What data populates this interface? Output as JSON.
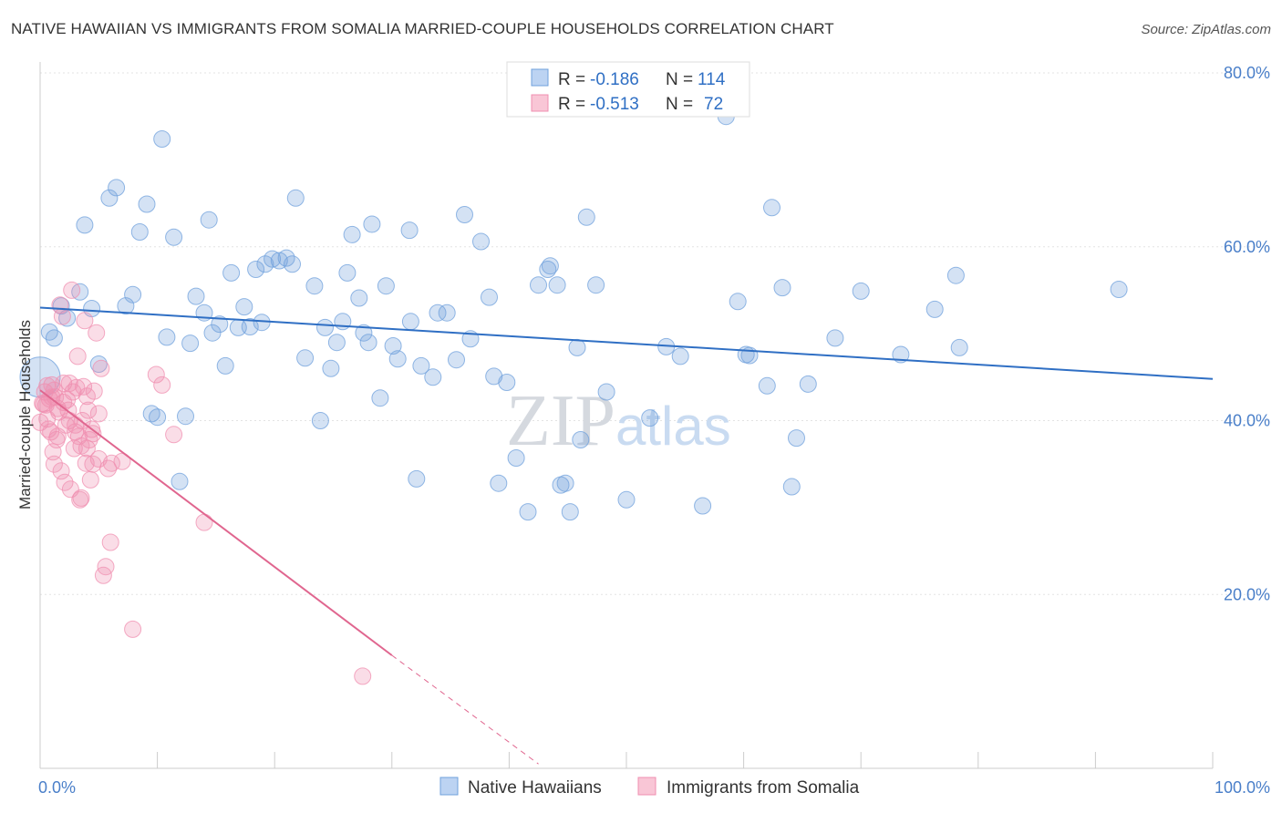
{
  "header": {
    "title": "NATIVE HAWAIIAN VS IMMIGRANTS FROM SOMALIA MARRIED-COUPLE HOUSEHOLDS CORRELATION CHART",
    "source": "Source: ZipAtlas.com"
  },
  "watermark": "ZIPatlas",
  "chart_data": {
    "type": "scatter",
    "ylabel": "Married-couple Households",
    "xlim": [
      0,
      100
    ],
    "ylim": [
      0,
      80
    ],
    "x_ticks": [
      {
        "value": 0,
        "label": "0.0%"
      },
      {
        "value": 100,
        "label": "100.0%"
      }
    ],
    "y_ticks": [
      {
        "value": 20,
        "label": "20.0%"
      },
      {
        "value": 40,
        "label": "40.0%"
      },
      {
        "value": 60,
        "label": "60.0%"
      },
      {
        "value": 80,
        "label": "80.0%"
      }
    ],
    "grid": true,
    "legend_position": "top-center",
    "series": [
      {
        "name": "Native Hawaiians",
        "color": "#6fa0dc",
        "line_color": "#2f6fc4",
        "r_label": "R =",
        "r_value": "-0.186",
        "n_label": "N =",
        "n_value": "114",
        "trend": {
          "x0": 0,
          "y0": 53.0,
          "x1": 100,
          "y1": 44.8
        },
        "points": [
          [
            0.0,
            45.0
          ],
          [
            0.8,
            50.2
          ],
          [
            1.2,
            49.5
          ],
          [
            1.8,
            53.2
          ],
          [
            2.3,
            51.8
          ],
          [
            3.4,
            54.8
          ],
          [
            4.4,
            52.9
          ],
          [
            5.0,
            46.5
          ],
          [
            3.8,
            62.5
          ],
          [
            5.9,
            65.6
          ],
          [
            6.5,
            66.8
          ],
          [
            7.3,
            53.2
          ],
          [
            7.9,
            54.5
          ],
          [
            8.5,
            61.7
          ],
          [
            9.1,
            64.9
          ],
          [
            9.5,
            40.8
          ],
          [
            10.0,
            40.4
          ],
          [
            10.4,
            72.4
          ],
          [
            10.8,
            49.6
          ],
          [
            11.4,
            61.1
          ],
          [
            11.9,
            33.0
          ],
          [
            12.4,
            40.5
          ],
          [
            12.8,
            48.9
          ],
          [
            13.3,
            54.3
          ],
          [
            14.0,
            52.4
          ],
          [
            14.4,
            63.1
          ],
          [
            14.7,
            50.1
          ],
          [
            15.3,
            51.1
          ],
          [
            15.8,
            46.3
          ],
          [
            16.3,
            57.0
          ],
          [
            16.9,
            50.7
          ],
          [
            17.4,
            53.1
          ],
          [
            17.9,
            50.8
          ],
          [
            18.4,
            57.4
          ],
          [
            18.9,
            51.3
          ],
          [
            19.2,
            58.0
          ],
          [
            19.8,
            58.6
          ],
          [
            20.4,
            58.4
          ],
          [
            21.0,
            58.7
          ],
          [
            21.5,
            58.0
          ],
          [
            21.8,
            65.6
          ],
          [
            22.6,
            47.2
          ],
          [
            23.4,
            55.5
          ],
          [
            23.9,
            40.0
          ],
          [
            24.3,
            50.7
          ],
          [
            24.8,
            46.0
          ],
          [
            25.3,
            49.0
          ],
          [
            25.8,
            51.4
          ],
          [
            26.2,
            57.0
          ],
          [
            26.6,
            61.4
          ],
          [
            27.2,
            54.1
          ],
          [
            27.6,
            50.1
          ],
          [
            28.0,
            49.0
          ],
          [
            28.3,
            62.6
          ],
          [
            29.0,
            42.6
          ],
          [
            29.5,
            55.5
          ],
          [
            30.1,
            48.6
          ],
          [
            30.5,
            47.1
          ],
          [
            31.5,
            61.9
          ],
          [
            31.6,
            51.4
          ],
          [
            32.1,
            33.3
          ],
          [
            32.5,
            46.3
          ],
          [
            33.5,
            45.0
          ],
          [
            33.9,
            52.4
          ],
          [
            34.7,
            52.4
          ],
          [
            35.5,
            47.0
          ],
          [
            36.2,
            63.7
          ],
          [
            36.7,
            49.4
          ],
          [
            37.6,
            60.6
          ],
          [
            38.3,
            54.2
          ],
          [
            38.7,
            45.1
          ],
          [
            39.1,
            32.8
          ],
          [
            39.8,
            44.4
          ],
          [
            40.6,
            35.7
          ],
          [
            41.6,
            29.5
          ],
          [
            42.5,
            55.6
          ],
          [
            43.3,
            57.4
          ],
          [
            43.5,
            57.8
          ],
          [
            44.1,
            55.6
          ],
          [
            44.4,
            32.6
          ],
          [
            44.8,
            32.8
          ],
          [
            45.2,
            29.5
          ],
          [
            45.8,
            48.4
          ],
          [
            46.1,
            37.8
          ],
          [
            46.6,
            63.4
          ],
          [
            47.4,
            55.6
          ],
          [
            48.3,
            43.3
          ],
          [
            50.0,
            30.9
          ],
          [
            52.0,
            40.3
          ],
          [
            53.4,
            48.5
          ],
          [
            54.6,
            47.4
          ],
          [
            56.5,
            30.2
          ],
          [
            58.5,
            75.0
          ],
          [
            59.5,
            53.7
          ],
          [
            60.2,
            47.6
          ],
          [
            60.5,
            47.5
          ],
          [
            62.0,
            44.0
          ],
          [
            62.4,
            64.5
          ],
          [
            63.3,
            55.3
          ],
          [
            64.1,
            32.4
          ],
          [
            64.5,
            38.0
          ],
          [
            65.5,
            44.2
          ],
          [
            67.8,
            49.5
          ],
          [
            70.0,
            54.9
          ],
          [
            73.4,
            47.6
          ],
          [
            76.3,
            52.8
          ],
          [
            78.4,
            48.4
          ],
          [
            78.1,
            56.7
          ],
          [
            92.0,
            55.1
          ]
        ]
      },
      {
        "name": "Immigrants from Somalia",
        "color": "#f08fb0",
        "line_color": "#e0668f",
        "r_label": "R =",
        "r_value": "-0.513",
        "n_label": "N =",
        "n_value": "72",
        "trend": {
          "x0": 0,
          "y0": 43.5,
          "x1": 30.0,
          "y1": 13.0
        },
        "trend_dash": {
          "x0": 30.0,
          "y0": 13.0,
          "x1": 42.5,
          "y1": 0.5
        },
        "points": [
          [
            0.0,
            39.8
          ],
          [
            0.2,
            42.0
          ],
          [
            0.4,
            43.3
          ],
          [
            0.5,
            41.8
          ],
          [
            0.6,
            40.2
          ],
          [
            0.7,
            39.0
          ],
          [
            0.8,
            42.5
          ],
          [
            0.9,
            38.7
          ],
          [
            1.0,
            44.1
          ],
          [
            1.1,
            36.4
          ],
          [
            1.2,
            35.0
          ],
          [
            1.3,
            42.7
          ],
          [
            1.4,
            37.8
          ],
          [
            1.5,
            38.2
          ],
          [
            1.6,
            41.0
          ],
          [
            1.7,
            53.3
          ],
          [
            1.8,
            34.2
          ],
          [
            1.9,
            52.0
          ],
          [
            2.0,
            44.3
          ],
          [
            2.1,
            32.9
          ],
          [
            2.2,
            39.5
          ],
          [
            2.3,
            42.4
          ],
          [
            2.4,
            41.2
          ],
          [
            2.5,
            40.0
          ],
          [
            2.6,
            32.1
          ],
          [
            2.7,
            55.0
          ],
          [
            2.8,
            43.3
          ],
          [
            2.9,
            36.8
          ],
          [
            3.0,
            38.7
          ],
          [
            3.1,
            43.8
          ],
          [
            3.2,
            47.4
          ],
          [
            3.3,
            38.2
          ],
          [
            3.4,
            30.9
          ],
          [
            3.5,
            31.1
          ],
          [
            3.6,
            40.0
          ],
          [
            3.7,
            43.9
          ],
          [
            3.8,
            51.5
          ],
          [
            3.9,
            35.1
          ],
          [
            4.0,
            36.8
          ],
          [
            4.1,
            41.2
          ],
          [
            4.2,
            37.8
          ],
          [
            4.3,
            33.2
          ],
          [
            4.4,
            39.0
          ],
          [
            4.5,
            35.0
          ],
          [
            4.6,
            43.4
          ],
          [
            4.8,
            50.1
          ],
          [
            5.0,
            40.8
          ],
          [
            5.2,
            46.0
          ],
          [
            5.4,
            22.2
          ],
          [
            5.6,
            23.2
          ],
          [
            5.8,
            34.5
          ],
          [
            6.0,
            26.0
          ],
          [
            6.1,
            35.1
          ],
          [
            7.0,
            35.3
          ],
          [
            7.9,
            16.0
          ],
          [
            9.9,
            45.3
          ],
          [
            10.4,
            44.1
          ],
          [
            11.4,
            38.4
          ],
          [
            14.0,
            28.3
          ],
          [
            27.5,
            10.6
          ],
          [
            0.3,
            41.9
          ],
          [
            0.6,
            44.0
          ],
          [
            1.0,
            42.7
          ],
          [
            1.5,
            41.4
          ],
          [
            2.0,
            42.1
          ],
          [
            2.5,
            44.3
          ],
          [
            3.0,
            39.5
          ],
          [
            3.5,
            37.1
          ],
          [
            4.0,
            42.8
          ],
          [
            4.5,
            38.5
          ],
          [
            5.0,
            35.6
          ],
          [
            1.2,
            43.5
          ]
        ]
      }
    ]
  }
}
